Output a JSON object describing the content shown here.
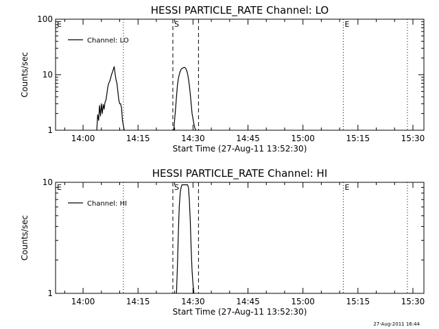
{
  "chart_data": [
    {
      "type": "line",
      "title": "HESSI PARTICLE_RATE Channel: LO",
      "xlabel": "Start Time (27-Aug-11 13:52:30)",
      "ylabel": "Counts/sec",
      "yscale": "log",
      "ylim": [
        1,
        100
      ],
      "y_ticks": [
        "1",
        "10",
        "100"
      ],
      "xlim": [
        "13:52:30",
        "15:33:00"
      ],
      "x_ticks": [
        "14:00",
        "14:15",
        "14:30",
        "14:45",
        "15:00",
        "15:15",
        "15:30"
      ],
      "legend": {
        "position": "top-left",
        "entries": [
          "Channel: LO"
        ]
      },
      "grid": false,
      "series": [
        {
          "name": "Channel: LO",
          "color": "#000000",
          "x": [
            "14:03:45",
            "14:04:00",
            "14:04:15",
            "14:04:30",
            "14:04:45",
            "14:05:00",
            "14:05:15",
            "14:05:30",
            "14:05:45",
            "14:06:00",
            "14:06:15",
            "14:06:30",
            "14:06:45",
            "14:07:00",
            "14:07:15",
            "14:07:30",
            "14:07:45",
            "14:08:00",
            "14:08:15",
            "14:08:30",
            "14:08:45",
            "14:09:00",
            "14:09:15",
            "14:09:30",
            "14:09:45",
            "14:10:00",
            "14:10:15",
            "14:10:30",
            "14:10:45",
            "14:11:00",
            "14:11:15"
          ],
          "y": [
            1.0,
            1.9,
            1.5,
            2.8,
            1.8,
            3.0,
            2.0,
            2.9,
            2.4,
            3.2,
            3.5,
            4.5,
            6.0,
            7.0,
            7.5,
            8.5,
            10.0,
            11.0,
            12.5,
            14.0,
            10.5,
            8.0,
            7.0,
            5.0,
            3.5,
            3.0,
            3.0,
            2.5,
            1.5,
            1.2,
            1.0
          ]
        },
        {
          "name": "",
          "color": "#000000",
          "x": [
            "14:24:45",
            "14:25:00",
            "14:25:15",
            "14:25:30",
            "14:25:45",
            "14:26:00",
            "14:26:15",
            "14:26:30",
            "14:26:45",
            "14:27:00",
            "14:27:15",
            "14:27:30",
            "14:27:45",
            "14:28:00",
            "14:28:15",
            "14:28:30",
            "14:28:45",
            "14:29:00",
            "14:29:15",
            "14:29:30",
            "14:29:45",
            "14:30:00",
            "14:30:15",
            "14:30:30",
            "14:30:45"
          ],
          "y": [
            1.0,
            1.6,
            2.5,
            4.0,
            6.5,
            8.5,
            10.0,
            11.5,
            12.5,
            13.0,
            13.2,
            13.5,
            13.5,
            13.0,
            12.0,
            10.5,
            8.5,
            6.5,
            4.5,
            3.0,
            2.0,
            1.6,
            1.3,
            1.1,
            1.0
          ]
        }
      ],
      "markers": [
        {
          "label": "E",
          "time": "13:52:30",
          "style": "dotted"
        },
        {
          "label": "",
          "time": "14:11:00",
          "style": "dotted"
        },
        {
          "label": "S",
          "time": "14:24:30",
          "style": "dashed"
        },
        {
          "label": "",
          "time": "14:31:30",
          "style": "dashed"
        },
        {
          "label": "E",
          "time": "15:11:00",
          "style": "dotted"
        },
        {
          "label": "",
          "time": "15:28:30",
          "style": "dotted"
        }
      ]
    },
    {
      "type": "line",
      "title": "HESSI PARTICLE_RATE Channel: HI",
      "xlabel": "Start Time (27-Aug-11 13:52:30)",
      "ylabel": "Counts/sec",
      "yscale": "log",
      "ylim": [
        1,
        10
      ],
      "y_ticks": [
        "1",
        "10"
      ],
      "xlim": [
        "13:52:30",
        "15:33:00"
      ],
      "x_ticks": [
        "14:00",
        "14:15",
        "14:30",
        "14:45",
        "15:00",
        "15:15",
        "15:30"
      ],
      "legend": {
        "position": "top-left",
        "entries": [
          "Channel: HI"
        ]
      },
      "grid": false,
      "series": [
        {
          "name": "Channel: HI",
          "color": "#000000",
          "x": [
            "14:25:30",
            "14:25:45",
            "14:26:00",
            "14:26:15",
            "14:26:30",
            "14:26:45",
            "14:27:00",
            "14:27:15",
            "14:27:30",
            "14:27:45",
            "14:28:00",
            "14:28:15",
            "14:28:30",
            "14:28:45",
            "14:29:00",
            "14:29:15",
            "14:29:30",
            "14:29:45",
            "14:30:00",
            "14:30:15"
          ],
          "y": [
            1.0,
            1.8,
            3.5,
            6.0,
            8.0,
            9.0,
            9.5,
            9.5,
            9.5,
            9.5,
            9.5,
            9.5,
            9.5,
            9.0,
            7.0,
            4.5,
            2.5,
            1.6,
            1.2,
            1.0
          ]
        }
      ],
      "markers": [
        {
          "label": "E",
          "time": "13:52:30",
          "style": "dotted"
        },
        {
          "label": "",
          "time": "14:11:00",
          "style": "dotted"
        },
        {
          "label": "S",
          "time": "14:24:30",
          "style": "dashed"
        },
        {
          "label": "",
          "time": "14:31:30",
          "style": "dashed"
        },
        {
          "label": "E",
          "time": "15:11:00",
          "style": "dotted"
        },
        {
          "label": "",
          "time": "15:28:30",
          "style": "dotted"
        }
      ]
    }
  ],
  "footer": {
    "timestamp": "27-Aug-2011 16:44"
  }
}
